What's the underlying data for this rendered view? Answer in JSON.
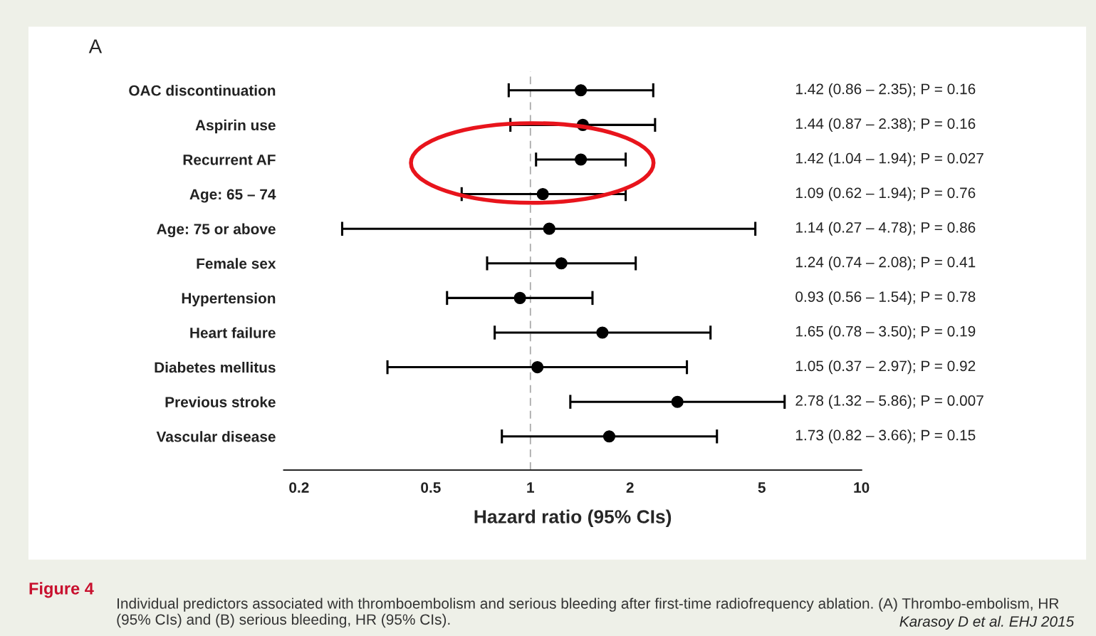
{
  "chart_data": {
    "type": "scatter",
    "orientation": "horizontal",
    "categories": [
      "OAC discontinuation",
      "Aspirin use",
      "Recurrent AF",
      "Age: 65 – 74",
      "Age: 75 or above",
      "Female sex",
      "Hypertension",
      "Heart failure",
      "Diabetes mellitus",
      "Previous stroke",
      "Vascular disease"
    ],
    "values": [
      1.42,
      1.44,
      1.42,
      1.09,
      1.14,
      1.24,
      0.93,
      1.65,
      1.05,
      2.78,
      1.73
    ],
    "errors": [
      [
        0.86,
        2.35
      ],
      [
        0.87,
        2.38
      ],
      [
        1.04,
        1.94
      ],
      [
        0.62,
        1.94
      ],
      [
        0.27,
        4.78
      ],
      [
        0.74,
        2.08
      ],
      [
        0.56,
        1.54
      ],
      [
        0.78,
        3.5
      ],
      [
        0.37,
        2.97
      ],
      [
        1.32,
        5.86
      ],
      [
        0.82,
        3.66
      ]
    ],
    "color": "#000000",
    "marker": "circle",
    "log": "x",
    "xlim": [
      0.18,
      10
    ],
    "xticks": [
      0.2,
      0.5,
      1,
      2,
      5,
      10
    ],
    "xlabel": "Hazard ratio (95% CIs)",
    "ref_lines": [
      {
        "axis": "x",
        "value": 1,
        "color": "#aaaaaa",
        "line_style": "dashed"
      }
    ],
    "grid": false,
    "legend": false,
    "annotations": [
      "A",
      "Figure 4",
      "Individual predictors associated with thromboembolism and serious bleeding after first-time radiofrequency ablation. (A) Thrombo-embolism, HR (95% CIs) and (B) serious bleeding, HR (95% CIs).",
      "Karasoy D et al. EHJ 2015",
      "1.42 (0.86 – 2.35); P = 0.16",
      "1.44 (0.87 – 2.38); P = 0.16",
      "1.42 (1.04 – 1.94); P = 0.027",
      "1.09 (0.62 – 1.94); P = 0.76",
      "1.14 (0.27 – 4.78); P = 0.86",
      "1.24 (0.74 – 2.08); P = 0.41",
      "0.93 (0.56 – 1.54); P = 0.78",
      "1.65 (0.78 – 3.50); P = 0.19",
      "1.05 (0.37 – 2.97); P = 0.92",
      "2.78 (1.32 – 5.86); P = 0.007",
      "1.73 (0.82 – 3.66); P = 0.15"
    ]
  }
}
